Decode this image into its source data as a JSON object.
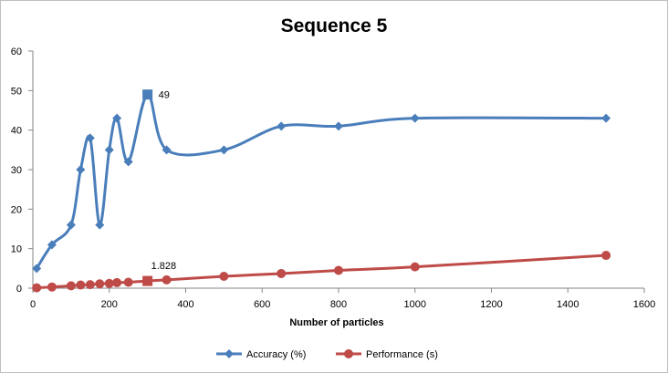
{
  "chart_data": {
    "type": "line",
    "title": "Sequence 5",
    "xlabel": "Number of particles",
    "ylabel": "",
    "xlim": [
      0,
      1600
    ],
    "ylim": [
      0,
      60
    ],
    "x_ticks": [
      "0",
      "200",
      "400",
      "600",
      "800",
      "1000",
      "1200",
      "1400",
      "1600"
    ],
    "y_ticks": [
      "0",
      "10",
      "20",
      "30",
      "40",
      "50",
      "60"
    ],
    "grid": false,
    "legend_position": "bottom",
    "smooth": true,
    "series": [
      {
        "name": "Accuracy (%)",
        "color": "#4a7ebb",
        "marker": "diamond",
        "points": [
          {
            "x": 10,
            "y": 5
          },
          {
            "x": 50,
            "y": 11
          },
          {
            "x": 100,
            "y": 16
          },
          {
            "x": 125,
            "y": 30
          },
          {
            "x": 150,
            "y": 38
          },
          {
            "x": 175,
            "y": 16
          },
          {
            "x": 200,
            "y": 35
          },
          {
            "x": 220,
            "y": 43
          },
          {
            "x": 250,
            "y": 32
          },
          {
            "x": 300,
            "y": 49
          },
          {
            "x": 350,
            "y": 35
          },
          {
            "x": 500,
            "y": 35
          },
          {
            "x": 650,
            "y": 41
          },
          {
            "x": 800,
            "y": 41
          },
          {
            "x": 1000,
            "y": 43
          },
          {
            "x": 1500,
            "y": 43
          }
        ],
        "highlight": {
          "x": 300,
          "y": 49,
          "marker": "square",
          "label": "49"
        }
      },
      {
        "name": "Performance (s)",
        "color": "#be4b48",
        "marker": "circle",
        "points": [
          {
            "x": 10,
            "y": 0.1
          },
          {
            "x": 50,
            "y": 0.3
          },
          {
            "x": 100,
            "y": 0.6
          },
          {
            "x": 125,
            "y": 0.8
          },
          {
            "x": 150,
            "y": 0.9
          },
          {
            "x": 175,
            "y": 1.1
          },
          {
            "x": 200,
            "y": 1.2
          },
          {
            "x": 220,
            "y": 1.4
          },
          {
            "x": 250,
            "y": 1.5
          },
          {
            "x": 300,
            "y": 1.828
          },
          {
            "x": 350,
            "y": 2.1
          },
          {
            "x": 500,
            "y": 3.0
          },
          {
            "x": 650,
            "y": 3.7
          },
          {
            "x": 800,
            "y": 4.5
          },
          {
            "x": 1000,
            "y": 5.4
          },
          {
            "x": 1500,
            "y": 8.3
          }
        ],
        "highlight": {
          "x": 300,
          "y": 1.828,
          "marker": "square",
          "label": "1.828"
        }
      }
    ]
  }
}
